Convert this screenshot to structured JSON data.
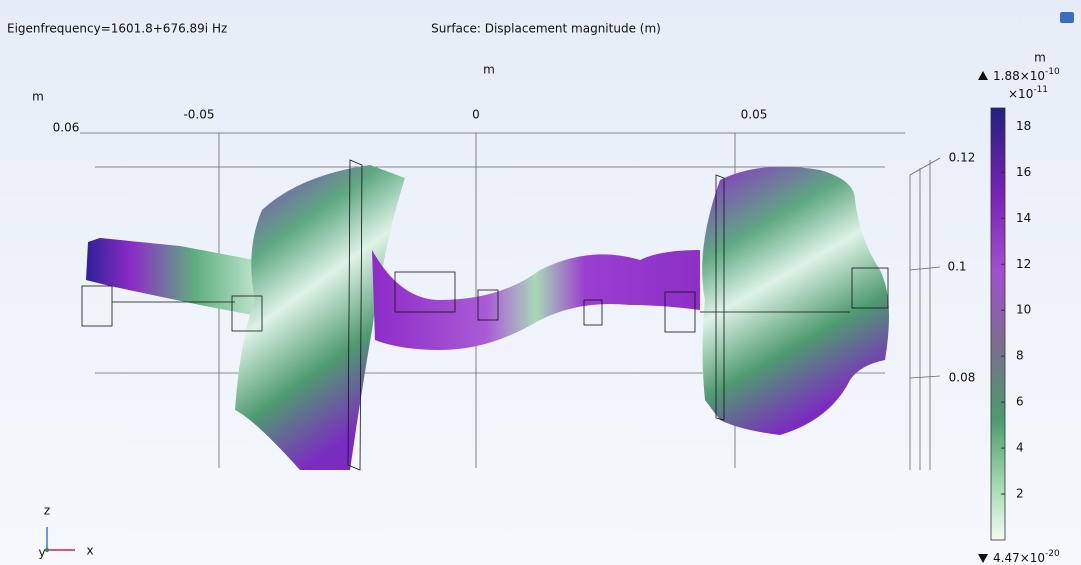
{
  "header": {
    "eigenfrequency": "Eigenfrequency=1601.8+676.89i Hz",
    "surface": "Surface: Displacement magnitude (m)"
  },
  "axes": {
    "x_unit": "m",
    "z_unit": "m",
    "x_ticks": [
      "-0.05",
      "0",
      "0.05"
    ],
    "corner_label": "0.06",
    "z_ticks": [
      "0.12",
      "0.1",
      "0.08"
    ]
  },
  "colorbar": {
    "unit": "m",
    "max": {
      "base": "1.88×10",
      "exp": "-10"
    },
    "scale": {
      "base": "×10",
      "exp": "-11"
    },
    "min": {
      "base": "4.47×10",
      "exp": "-20"
    },
    "range": [
      0,
      18.8
    ],
    "ticks": [
      2,
      4,
      6,
      8,
      10,
      12,
      14,
      16,
      18
    ]
  },
  "triad": {
    "z": "z",
    "y": "y",
    "x": "x"
  }
}
